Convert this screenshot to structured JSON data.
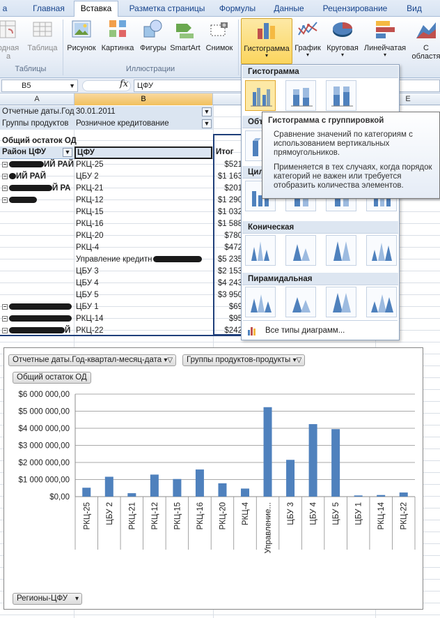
{
  "ribbon": {
    "tabs": [
      {
        "label": "a",
        "active": false
      },
      {
        "label": "Главная",
        "active": false
      },
      {
        "label": "Вставка",
        "active": true
      },
      {
        "label": "Разметка страницы",
        "active": false
      },
      {
        "label": "Формулы",
        "active": false
      },
      {
        "label": "Данные",
        "active": false
      },
      {
        "label": "Рецензирование",
        "active": false
      },
      {
        "label": "Вид",
        "active": false
      }
    ],
    "buttons": {
      "pivot_l1": "одная",
      "pivot_l2": "a ",
      "table": "Таблица",
      "picture": "Рисунок",
      "clipart": "Картинка",
      "shapes": "Фигуры",
      "smartart": "SmartArt",
      "screenshot": "Снимок",
      "column": "Гистограмма",
      "line": "График",
      "pie": "Круговая",
      "bar": "Линейчатая",
      "area_l1": "С",
      "area_l2": "областя"
    },
    "groups": {
      "tables": "Таблицы",
      "illustrations": "Иллюстрации"
    }
  },
  "formula_bar": {
    "cell_ref": "B5",
    "fx": "fx",
    "value": "ЦФУ"
  },
  "columns": [
    "A",
    "B",
    "E"
  ],
  "pivot": {
    "filters": [
      {
        "label": "Отчетные даты.Год",
        "value": "30.01.2011"
      },
      {
        "label": "Группы продуктов",
        "value": "Розничное кредитование"
      }
    ],
    "measure": "Общий остаток ОД",
    "headers": {
      "region": "Район ЦФУ",
      "cfu": "ЦФУ",
      "total": "Итог"
    },
    "rows": [
      {
        "region": "ИЙ РАЙ",
        "cfu": "РКЦ-25",
        "total": "$521"
      },
      {
        "region": "ИЙ РАЙ",
        "cfu": "ЦБУ 2",
        "total": "$1 163"
      },
      {
        "region": "Й РА",
        "cfu": "РКЦ-21",
        "total": "$201"
      },
      {
        "region": "",
        "cfu": "РКЦ-12",
        "total": "$1 290"
      },
      {
        "region": "",
        "cfu": "РКЦ-15",
        "total": "$1 032"
      },
      {
        "region": "",
        "cfu": "РКЦ-16",
        "total": "$1 588"
      },
      {
        "region": "",
        "cfu": "РКЦ-20",
        "total": "$780"
      },
      {
        "region": "",
        "cfu": "РКЦ-4",
        "total": "$472"
      },
      {
        "region": "",
        "cfu": "Управление кредитн",
        "total": "$5 235"
      },
      {
        "region": "",
        "cfu": "ЦБУ 3",
        "total": "$2 153"
      },
      {
        "region": "",
        "cfu": "ЦБУ 4",
        "total": "$4 243"
      },
      {
        "region": "",
        "cfu": "ЦБУ 5",
        "total": "$3 950"
      },
      {
        "region": "",
        "cfu": "ЦБУ 1",
        "total": "$69"
      },
      {
        "region": "",
        "cfu": "РКЦ-14",
        "total": "$95"
      },
      {
        "region": "Й",
        "cfu": "РКЦ-22",
        "total": "$242"
      }
    ]
  },
  "gallery": {
    "sections": [
      "Гистограмма",
      "Объ",
      "Цил",
      "Коническая",
      "Пирамидальная"
    ],
    "all_types": "Все типы диаграмм..."
  },
  "tooltip": {
    "title": "Гистограмма с группировкой",
    "p1": "Сравнение значений по категориям с использованием вертикальных прямоугольников.",
    "p2": "Применяется в тех случаях, когда порядок категорий не важен или требуется отобразить количества элементов."
  },
  "chart_field_buttons": {
    "dates": "Отчетные даты.Год-квартал-месяц-дата",
    "products": "Группы продуктов-продукты",
    "measure": "Общий остаток ОД",
    "axis": "Регионы-ЦФУ"
  },
  "chart_data": {
    "type": "bar",
    "categories": [
      "РКЦ-25",
      "ЦБУ 2",
      "РКЦ-21",
      "РКЦ-12",
      "РКЦ-15",
      "РКЦ-16",
      "РКЦ-20",
      "РКЦ-4",
      "Управление...",
      "ЦБУ 3",
      "ЦБУ 4",
      "ЦБУ 5",
      "ЦБУ 1",
      "РКЦ-14",
      "РКЦ-22"
    ],
    "values": [
      521000,
      1163000,
      201000,
      1290000,
      1032000,
      1588000,
      780000,
      472000,
      5235000,
      2153000,
      4243000,
      3950000,
      69000,
      95000,
      242000
    ],
    "ylim": [
      0,
      6000000
    ],
    "yticks": [
      "$0,00",
      "$1 000 000,00",
      "$2 000 000,00",
      "$3 000 000,00",
      "$4 000 000,00",
      "$5 000 000,00",
      "$6 000 000,00"
    ],
    "grid": true,
    "color": "#4f81bd"
  }
}
